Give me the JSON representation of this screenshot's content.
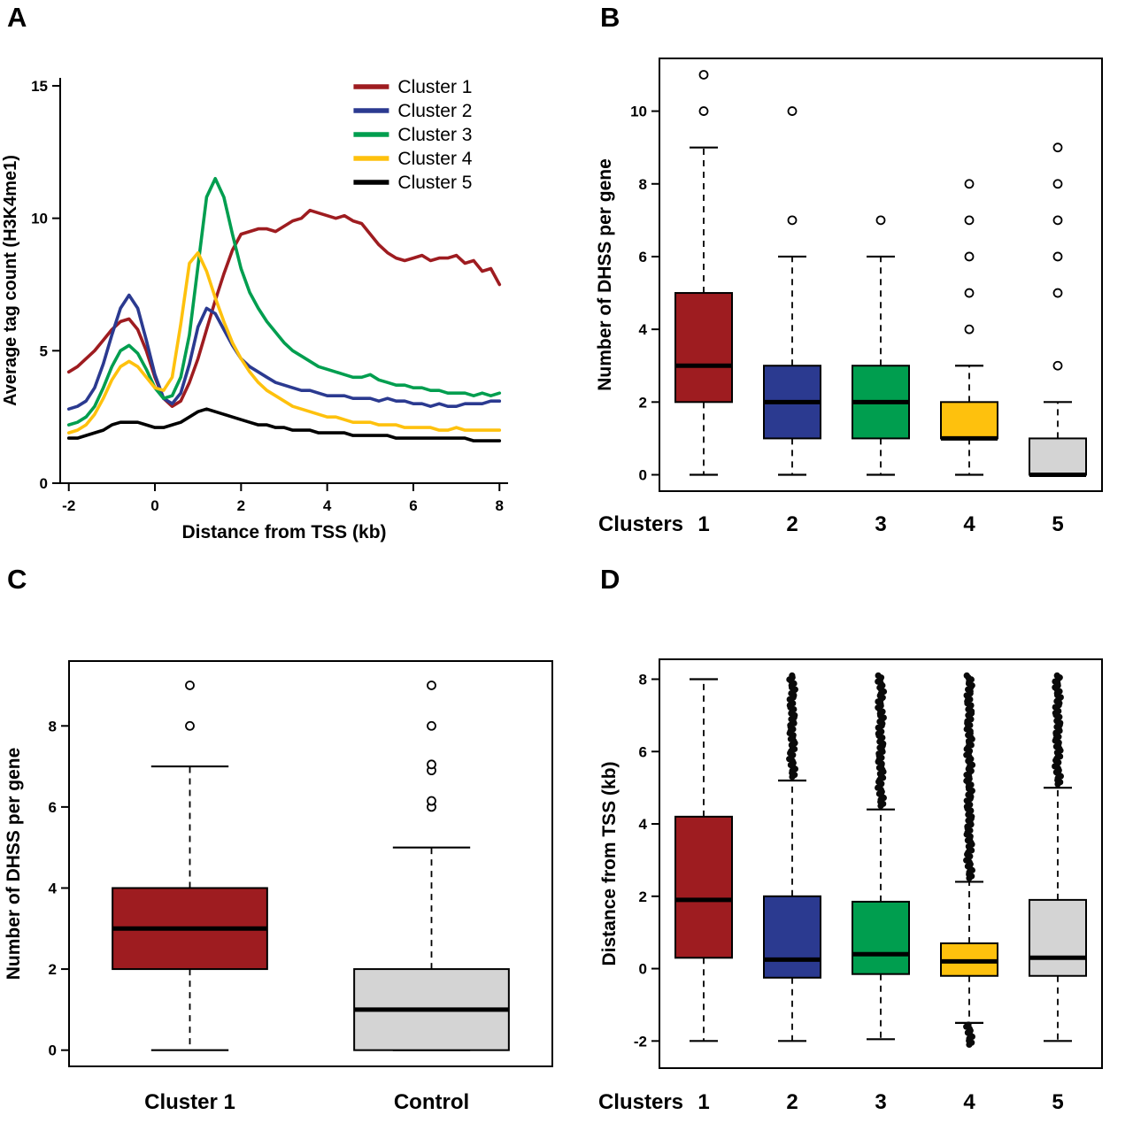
{
  "panels": {
    "A": {
      "label": "A"
    },
    "B": {
      "label": "B"
    },
    "C": {
      "label": "C"
    },
    "D": {
      "label": "D"
    }
  },
  "colors": {
    "cluster1": "#9e1c20",
    "cluster2": "#2b3a90",
    "cluster3": "#009e4f",
    "cluster4": "#fec10d",
    "cluster5": "#000000",
    "control_gray": "#d4d4d4"
  },
  "chart_data": [
    {
      "panel": "A",
      "type": "line",
      "title": "",
      "xlabel": "Distance from TSS (kb)",
      "ylabel": "Average tag count (H3K4me1)",
      "xlim": [
        -2.2,
        8.2
      ],
      "ylim": [
        0,
        15.3
      ],
      "xticks": [
        -2,
        0,
        2,
        4,
        6,
        8
      ],
      "yticks": [
        0,
        5,
        10,
        15
      ],
      "legend_position": "top-right",
      "x": [
        -2,
        -1.8,
        -1.6,
        -1.4,
        -1.2,
        -1,
        -0.8,
        -0.6,
        -0.4,
        -0.2,
        0,
        0.2,
        0.4,
        0.6,
        0.8,
        1,
        1.2,
        1.4,
        1.6,
        1.8,
        2,
        2.2,
        2.4,
        2.6,
        2.8,
        3,
        3.2,
        3.4,
        3.6,
        3.8,
        4,
        4.2,
        4.4,
        4.6,
        4.8,
        5,
        5.2,
        5.4,
        5.6,
        5.8,
        6,
        6.2,
        6.4,
        6.6,
        6.8,
        7,
        7.2,
        7.4,
        7.6,
        7.8,
        8
      ],
      "series": [
        {
          "name": "Cluster 1",
          "color": "#9e1c20",
          "y": [
            4.2,
            4.4,
            4.7,
            5.0,
            5.4,
            5.8,
            6.1,
            6.2,
            5.8,
            5.0,
            4.0,
            3.2,
            2.9,
            3.1,
            3.8,
            4.7,
            5.8,
            6.9,
            7.9,
            8.8,
            9.4,
            9.5,
            9.6,
            9.6,
            9.5,
            9.7,
            9.9,
            10.0,
            10.3,
            10.2,
            10.1,
            10.0,
            10.1,
            9.9,
            9.8,
            9.4,
            9.0,
            8.7,
            8.5,
            8.4,
            8.5,
            8.6,
            8.4,
            8.5,
            8.5,
            8.6,
            8.3,
            8.4,
            8.0,
            8.1,
            7.5
          ]
        },
        {
          "name": "Cluster 2",
          "color": "#2b3a90",
          "y": [
            2.8,
            2.9,
            3.1,
            3.6,
            4.5,
            5.6,
            6.6,
            7.1,
            6.6,
            5.4,
            4.1,
            3.2,
            3.0,
            3.4,
            4.5,
            5.9,
            6.6,
            6.4,
            5.8,
            5.2,
            4.7,
            4.4,
            4.2,
            4.0,
            3.8,
            3.7,
            3.6,
            3.5,
            3.5,
            3.4,
            3.3,
            3.3,
            3.3,
            3.2,
            3.2,
            3.2,
            3.1,
            3.2,
            3.1,
            3.1,
            3.0,
            3.0,
            2.9,
            3.0,
            2.9,
            2.9,
            3.0,
            3.0,
            3.0,
            3.1,
            3.1
          ]
        },
        {
          "name": "Cluster 3",
          "color": "#009e4f",
          "y": [
            2.2,
            2.3,
            2.5,
            2.9,
            3.6,
            4.4,
            5.0,
            5.2,
            4.9,
            4.3,
            3.6,
            3.2,
            3.3,
            4.0,
            5.6,
            8.2,
            10.8,
            11.5,
            10.8,
            9.4,
            8.1,
            7.2,
            6.6,
            6.1,
            5.7,
            5.3,
            5.0,
            4.8,
            4.6,
            4.4,
            4.3,
            4.2,
            4.1,
            4.0,
            4.0,
            4.1,
            3.9,
            3.8,
            3.7,
            3.7,
            3.6,
            3.6,
            3.5,
            3.5,
            3.4,
            3.4,
            3.4,
            3.3,
            3.4,
            3.3,
            3.4
          ]
        },
        {
          "name": "Cluster 4",
          "color": "#fec10d",
          "y": [
            1.9,
            2.0,
            2.2,
            2.6,
            3.2,
            3.9,
            4.4,
            4.6,
            4.4,
            4.0,
            3.6,
            3.5,
            4.0,
            6.0,
            8.3,
            8.7,
            8.0,
            7.0,
            6.1,
            5.3,
            4.7,
            4.2,
            3.8,
            3.5,
            3.3,
            3.1,
            2.9,
            2.8,
            2.7,
            2.6,
            2.5,
            2.5,
            2.4,
            2.3,
            2.3,
            2.3,
            2.2,
            2.2,
            2.2,
            2.1,
            2.1,
            2.1,
            2.1,
            2.0,
            2.0,
            2.1,
            2.0,
            2.0,
            2.0,
            2.0,
            2.0
          ]
        },
        {
          "name": "Cluster 5",
          "color": "#000000",
          "y": [
            1.7,
            1.7,
            1.8,
            1.9,
            2.0,
            2.2,
            2.3,
            2.3,
            2.3,
            2.2,
            2.1,
            2.1,
            2.2,
            2.3,
            2.5,
            2.7,
            2.8,
            2.7,
            2.6,
            2.5,
            2.4,
            2.3,
            2.2,
            2.2,
            2.1,
            2.1,
            2.0,
            2.0,
            2.0,
            1.9,
            1.9,
            1.9,
            1.9,
            1.8,
            1.8,
            1.8,
            1.8,
            1.8,
            1.7,
            1.7,
            1.7,
            1.7,
            1.7,
            1.7,
            1.7,
            1.7,
            1.7,
            1.6,
            1.6,
            1.6,
            1.6
          ]
        }
      ]
    },
    {
      "panel": "B",
      "type": "boxplot",
      "title": "",
      "xlabel": "Clusters",
      "ylabel": "Number of DHSS per gene",
      "ylim": [
        -0.45,
        11.45
      ],
      "yticks": [
        0,
        2,
        4,
        6,
        8,
        10
      ],
      "boxes": [
        {
          "category": "1",
          "color": "#9e1c20",
          "whisker_low": 0,
          "q1": 2,
          "median": 3,
          "q3": 5,
          "whisker_high": 9,
          "outliers": [
            10,
            11
          ]
        },
        {
          "category": "2",
          "color": "#2b3a90",
          "whisker_low": 0,
          "q1": 1,
          "median": 2,
          "q3": 3,
          "whisker_high": 6,
          "outliers": [
            7,
            10
          ]
        },
        {
          "category": "3",
          "color": "#009e4f",
          "whisker_low": 0,
          "q1": 1,
          "median": 2,
          "q3": 3,
          "whisker_high": 6,
          "outliers": [
            7
          ]
        },
        {
          "category": "4",
          "color": "#fec10d",
          "whisker_low": 0,
          "q1": 1,
          "median": 1,
          "q3": 2,
          "whisker_high": 3,
          "outliers": [
            4,
            5,
            6,
            7,
            8
          ]
        },
        {
          "category": "5",
          "color": "#d4d4d4",
          "whisker_low": 0,
          "q1": 0,
          "median": 0,
          "q3": 1,
          "whisker_high": 2,
          "outliers": [
            3,
            5,
            6,
            7,
            8,
            9
          ]
        }
      ]
    },
    {
      "panel": "C",
      "type": "boxplot",
      "title": "",
      "xlabel": "",
      "ylabel": "Number of DHSS per gene",
      "ylim": [
        -0.4,
        9.6
      ],
      "yticks": [
        0,
        2,
        4,
        6,
        8
      ],
      "boxes": [
        {
          "category": "Cluster 1",
          "color": "#9e1c20",
          "whisker_low": 0,
          "q1": 2,
          "median": 3,
          "q3": 4,
          "whisker_high": 7,
          "outliers": [
            8,
            9
          ]
        },
        {
          "category": "Control",
          "color": "#d4d4d4",
          "whisker_low": 0,
          "q1": 0,
          "median": 1,
          "q3": 2,
          "whisker_high": 5,
          "outliers": [
            6,
            6.15,
            6.9,
            7.05,
            8,
            9
          ]
        }
      ]
    },
    {
      "panel": "D",
      "type": "boxplot",
      "title": "",
      "xlabel": "Clusters",
      "ylabel": "Distance from TSS (kb)",
      "ylim": [
        -2.75,
        8.55
      ],
      "yticks": [
        -2,
        0,
        2,
        4,
        6,
        8
      ],
      "boxes": [
        {
          "category": "1",
          "color": "#9e1c20",
          "whisker_low": -2.0,
          "q1": 0.3,
          "median": 1.9,
          "q3": 4.2,
          "whisker_high": 8.0,
          "outliers": [],
          "outlier_bands": []
        },
        {
          "category": "2",
          "color": "#2b3a90",
          "whisker_low": -2.0,
          "q1": -0.25,
          "median": 0.25,
          "q3": 2.0,
          "whisker_high": 5.2,
          "outliers": [],
          "outlier_bands": [
            [
              5.3,
              8.1
            ]
          ]
        },
        {
          "category": "3",
          "color": "#009e4f",
          "whisker_low": -1.95,
          "q1": -0.15,
          "median": 0.4,
          "q3": 1.85,
          "whisker_high": 4.4,
          "outliers": [],
          "outlier_bands": [
            [
              4.5,
              8.1
            ]
          ]
        },
        {
          "category": "4",
          "color": "#fec10d",
          "whisker_low": -1.5,
          "q1": -0.2,
          "median": 0.2,
          "q3": 0.7,
          "whisker_high": 2.4,
          "outliers": [],
          "outlier_bands": [
            [
              2.5,
              8.1
            ],
            [
              -2.1,
              -1.55
            ]
          ]
        },
        {
          "category": "5",
          "color": "#d4d4d4",
          "whisker_low": -2.0,
          "q1": -0.2,
          "median": 0.3,
          "q3": 1.9,
          "whisker_high": 5.0,
          "outliers": [],
          "outlier_bands": [
            [
              5.1,
              8.1
            ]
          ]
        }
      ]
    }
  ]
}
